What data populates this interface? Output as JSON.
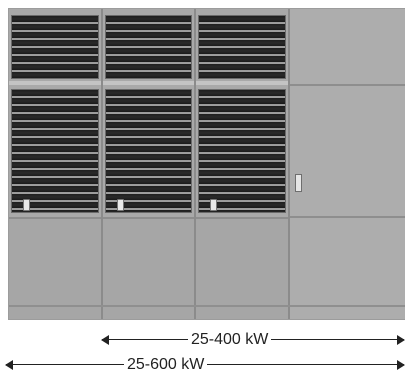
{
  "dimensions": {
    "span_small": {
      "label": "25-400 kW"
    },
    "span_large": {
      "label": "25-600 kW"
    }
  },
  "colors": {
    "cabinet": "#b2b2b2",
    "fan_grille": "#1e1e1e",
    "dimension_line": "#222222"
  },
  "cabinet": {
    "modules": [
      {
        "name": "module-1"
      },
      {
        "name": "module-2"
      },
      {
        "name": "module-3"
      }
    ],
    "side_panel": {
      "name": "side-panel"
    }
  }
}
